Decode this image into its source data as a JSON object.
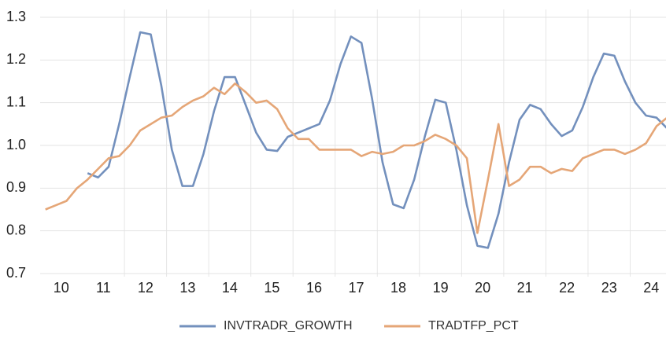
{
  "chart_data": {
    "type": "line",
    "x": [
      10.125,
      10.375,
      10.625,
      10.875,
      11.125,
      11.375,
      11.625,
      11.875,
      12.125,
      12.375,
      12.625,
      12.875,
      13.125,
      13.375,
      13.625,
      13.875,
      14.125,
      14.375,
      14.625,
      14.875,
      15.125,
      15.375,
      15.625,
      15.875,
      16.125,
      16.375,
      16.625,
      16.875,
      17.125,
      17.375,
      17.625,
      17.875,
      18.125,
      18.375,
      18.625,
      18.875,
      19.125,
      19.375,
      19.625,
      19.875,
      20.125,
      20.375,
      20.625,
      20.875,
      21.125,
      21.375,
      21.625,
      21.875,
      22.125,
      22.375,
      22.625,
      22.875,
      23.125,
      23.375,
      23.625,
      23.875,
      24.125,
      24.375,
      24.625,
      24.875
    ],
    "series": [
      {
        "name": "INVTRADR_GROWTH",
        "color": "#7390bd",
        "values": [
          null,
          null,
          null,
          null,
          0.935,
          0.925,
          0.95,
          1.05,
          1.16,
          1.265,
          1.26,
          1.14,
          0.99,
          0.905,
          0.905,
          0.98,
          1.08,
          1.16,
          1.16,
          1.095,
          1.03,
          0.99,
          0.987,
          1.02,
          1.03,
          1.04,
          1.05,
          1.105,
          1.19,
          1.255,
          1.24,
          1.11,
          0.96,
          0.862,
          0.853,
          0.92,
          1.02,
          1.107,
          1.1,
          0.99,
          0.86,
          0.765,
          0.76,
          0.84,
          0.96,
          1.06,
          1.095,
          1.085,
          1.05,
          1.022,
          1.035,
          1.09,
          1.16,
          1.215,
          1.21,
          1.15,
          1.1,
          1.07,
          1.065,
          1.04
        ]
      },
      {
        "name": "TRADTFP_PCT",
        "color": "#e5a677",
        "values": [
          0.85,
          0.86,
          0.87,
          0.9,
          0.92,
          0.945,
          0.97,
          0.975,
          1.0,
          1.035,
          1.05,
          1.065,
          1.07,
          1.09,
          1.105,
          1.115,
          1.135,
          1.12,
          1.145,
          1.125,
          1.1,
          1.105,
          1.085,
          1.04,
          1.015,
          1.015,
          0.99,
          0.99,
          0.99,
          0.99,
          0.975,
          0.985,
          0.98,
          0.985,
          1.0,
          1.0,
          1.01,
          1.025,
          1.015,
          1.0,
          0.97,
          0.795,
          0.92,
          1.05,
          0.905,
          0.92,
          0.95,
          0.95,
          0.935,
          0.945,
          0.94,
          0.97,
          0.98,
          0.99,
          0.99,
          0.98,
          0.99,
          1.005,
          1.045,
          1.065
        ]
      }
    ],
    "xlim": [
      10,
      24.85
    ],
    "xticks": [
      {
        "value": 10.5,
        "label": "10"
      },
      {
        "value": 11.5,
        "label": "11"
      },
      {
        "value": 12.5,
        "label": "12"
      },
      {
        "value": 13.5,
        "label": "13"
      },
      {
        "value": 14.5,
        "label": "14"
      },
      {
        "value": 15.5,
        "label": "15"
      },
      {
        "value": 16.5,
        "label": "16"
      },
      {
        "value": 17.5,
        "label": "17"
      },
      {
        "value": 18.5,
        "label": "18"
      },
      {
        "value": 19.5,
        "label": "19"
      },
      {
        "value": 20.5,
        "label": "20"
      },
      {
        "value": 21.5,
        "label": "21"
      },
      {
        "value": 22.5,
        "label": "22"
      },
      {
        "value": 23.5,
        "label": "23"
      },
      {
        "value": 24.5,
        "label": "24"
      }
    ],
    "xgrid": [
      12,
      13,
      14,
      15,
      16,
      17,
      18,
      19,
      20,
      21,
      22,
      23,
      24
    ],
    "ylim": [
      0.7,
      1.3
    ],
    "yticks": [
      0.7,
      0.8,
      0.9,
      {
        "value": 1,
        "label": "1.0"
      },
      1.1,
      1.2,
      1.3
    ],
    "grid": true,
    "legend": "bottom"
  }
}
